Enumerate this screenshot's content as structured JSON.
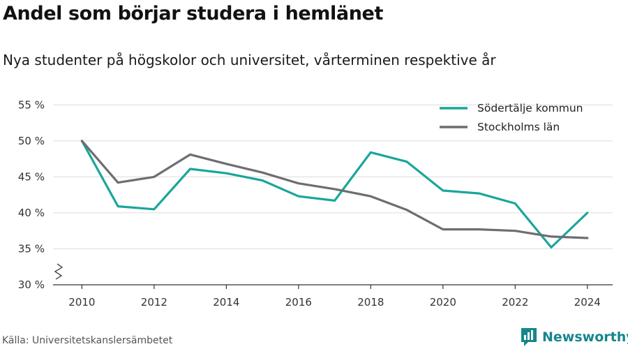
{
  "title": "Andel som börjar studera i hemlänet",
  "subtitle": "Nya studenter på högskolor och universitet, vårterminen respektive år",
  "source": "Källa: Universitetskanslersämbetet",
  "brand": {
    "name": "Newsworthy",
    "icon": "newsworthy-logo-icon",
    "color": "#16868c"
  },
  "chart_data": {
    "type": "line",
    "x": [
      2010,
      2011,
      2012,
      2013,
      2014,
      2015,
      2016,
      2017,
      2018,
      2019,
      2020,
      2021,
      2022,
      2023,
      2024
    ],
    "x_ticks": [
      2010,
      2012,
      2014,
      2016,
      2018,
      2020,
      2022,
      2024
    ],
    "x_tick_labels": [
      "2010",
      "2012",
      "2014",
      "2016",
      "2018",
      "2020",
      "2022",
      "2024"
    ],
    "y_ticks": [
      30,
      35,
      40,
      45,
      50,
      55
    ],
    "y_tick_labels": [
      "30 %",
      "35 %",
      "40 %",
      "45 %",
      "50 %",
      "55 %"
    ],
    "ylim": [
      30,
      56
    ],
    "xlim": [
      2009.2,
      2024.7
    ],
    "y_axis_break": true,
    "grid": "horizontal",
    "legend_position": "top-right",
    "series": [
      {
        "name": "Södertälje kommun",
        "color": "#1aa69b",
        "values": [
          50.0,
          40.9,
          40.5,
          46.1,
          45.5,
          44.5,
          42.3,
          41.7,
          48.4,
          47.1,
          43.1,
          42.7,
          41.3,
          35.2,
          40.0
        ]
      },
      {
        "name": "Stockholms län",
        "color": "#6d6d72",
        "values": [
          50.0,
          44.2,
          45.0,
          48.1,
          46.8,
          45.6,
          44.1,
          43.3,
          42.3,
          40.4,
          37.7,
          37.7,
          37.5,
          36.7,
          36.5
        ]
      }
    ]
  }
}
